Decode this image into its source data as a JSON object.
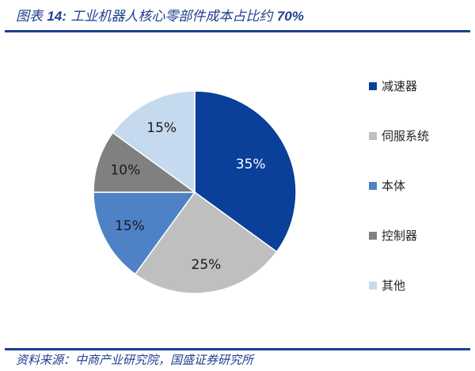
{
  "header": {
    "figure_prefix": "图表 ",
    "figure_number": "14:",
    "title_text": " 工业机器人核心零部件成本占比约 ",
    "title_highlight": "70%"
  },
  "footer": {
    "source": "资料来源：中商产业研究院，国盛证券研究所"
  },
  "chart_data": {
    "type": "pie",
    "title": "工业机器人核心零部件成本占比约70%",
    "start_angle": "12 o'clock, clockwise",
    "categories": [
      "减速器",
      "伺服系统",
      "本体",
      "控制器",
      "其他"
    ],
    "values": [
      35,
      25,
      15,
      10,
      15
    ],
    "labels": [
      "35%",
      "25%",
      "15%",
      "10%",
      "15%"
    ],
    "colors": [
      "#0a3f9a",
      "#bfbfbf",
      "#4f81c7",
      "#808080",
      "#c5d9ef"
    ],
    "label_colors": [
      "#ffffff",
      "#1a1a1a",
      "#1a1a1a",
      "#1a1a1a",
      "#1a1a1a"
    ],
    "legend_position": "right"
  },
  "legend": {
    "items": [
      {
        "label": "减速器",
        "color": "#0a3f9a"
      },
      {
        "label": "伺服系统",
        "color": "#bfbfbf"
      },
      {
        "label": "本体",
        "color": "#4f81c7"
      },
      {
        "label": "控制器",
        "color": "#808080"
      },
      {
        "label": "其他",
        "color": "#c5d9ef"
      }
    ]
  }
}
